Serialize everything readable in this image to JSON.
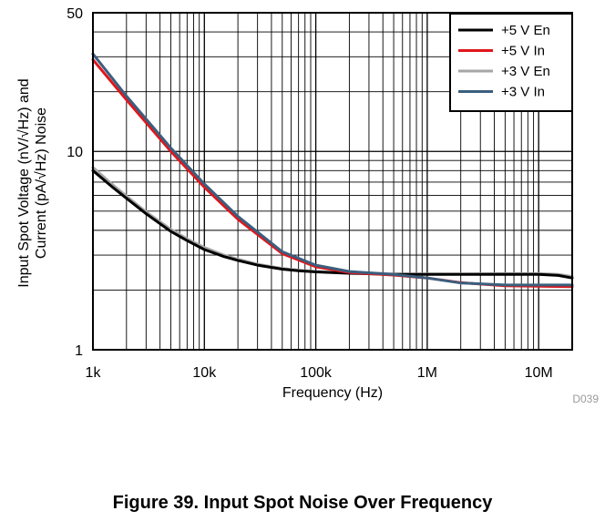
{
  "caption": "Figure 39. Input Spot Noise Over Frequency",
  "chart_data": {
    "type": "line",
    "xlabel": "Frequency (Hz)",
    "ylabel_line1": "Input Spot Voltage (nV/√Hz) and",
    "ylabel_line2": "Current (pA/√Hz) Noise",
    "xscale": "log",
    "yscale": "log",
    "xlim": [
      1000,
      20000000
    ],
    "ylim": [
      1,
      50
    ],
    "x_ticks": [
      1000,
      10000,
      100000,
      1000000,
      10000000
    ],
    "x_tick_labels": [
      "1k",
      "10k",
      "100k",
      "1M",
      "10M"
    ],
    "y_ticks": [
      1,
      10,
      50
    ],
    "y_tick_labels": [
      "1",
      "10",
      "50"
    ],
    "grid": true,
    "legend_position": "top-right",
    "figure_code": "D039",
    "series": [
      {
        "name": "+5 V En",
        "color": "#000000",
        "x": [
          1000,
          1500,
          2000,
          3000,
          5000,
          7000,
          10000,
          15000,
          20000,
          30000,
          50000,
          70000,
          100000,
          200000,
          500000,
          1000000,
          2000000,
          5000000,
          10000000,
          15000000,
          20000000
        ],
        "y": [
          8.0,
          6.6,
          5.8,
          4.85,
          3.95,
          3.55,
          3.2,
          2.95,
          2.82,
          2.67,
          2.55,
          2.5,
          2.47,
          2.43,
          2.4,
          2.4,
          2.4,
          2.4,
          2.4,
          2.37,
          2.3
        ]
      },
      {
        "name": "+5 V In",
        "color": "#e0161b",
        "x": [
          1000,
          2000,
          5000,
          10000,
          20000,
          50000,
          100000,
          200000,
          500000,
          1000000,
          2000000,
          5000000,
          10000000,
          20000000
        ],
        "y": [
          29.0,
          18.2,
          10.0,
          6.6,
          4.55,
          3.05,
          2.62,
          2.45,
          2.38,
          2.3,
          2.18,
          2.1,
          2.09,
          2.08
        ]
      },
      {
        "name": "+3 V En",
        "color": "#a6a6a6",
        "x": [
          1000,
          1500,
          2000,
          3000,
          5000,
          7000,
          10000,
          15000,
          20000,
          30000,
          50000,
          70000,
          100000,
          200000,
          500000,
          1000000,
          2000000,
          5000000,
          10000000,
          15000000,
          20000000
        ],
        "y": [
          8.3,
          6.8,
          5.95,
          4.95,
          4.05,
          3.62,
          3.28,
          3.0,
          2.86,
          2.7,
          2.57,
          2.52,
          2.48,
          2.44,
          2.41,
          2.41,
          2.41,
          2.42,
          2.42,
          2.4,
          2.34
        ]
      },
      {
        "name": "+3 V In",
        "color": "#3b5f7e",
        "x": [
          1000,
          2000,
          5000,
          10000,
          20000,
          50000,
          100000,
          200000,
          500000,
          1000000,
          2000000,
          5000000,
          10000000,
          20000000
        ],
        "y": [
          31.0,
          19.0,
          10.4,
          6.85,
          4.7,
          3.12,
          2.67,
          2.48,
          2.4,
          2.3,
          2.17,
          2.12,
          2.12,
          2.12
        ]
      }
    ]
  }
}
